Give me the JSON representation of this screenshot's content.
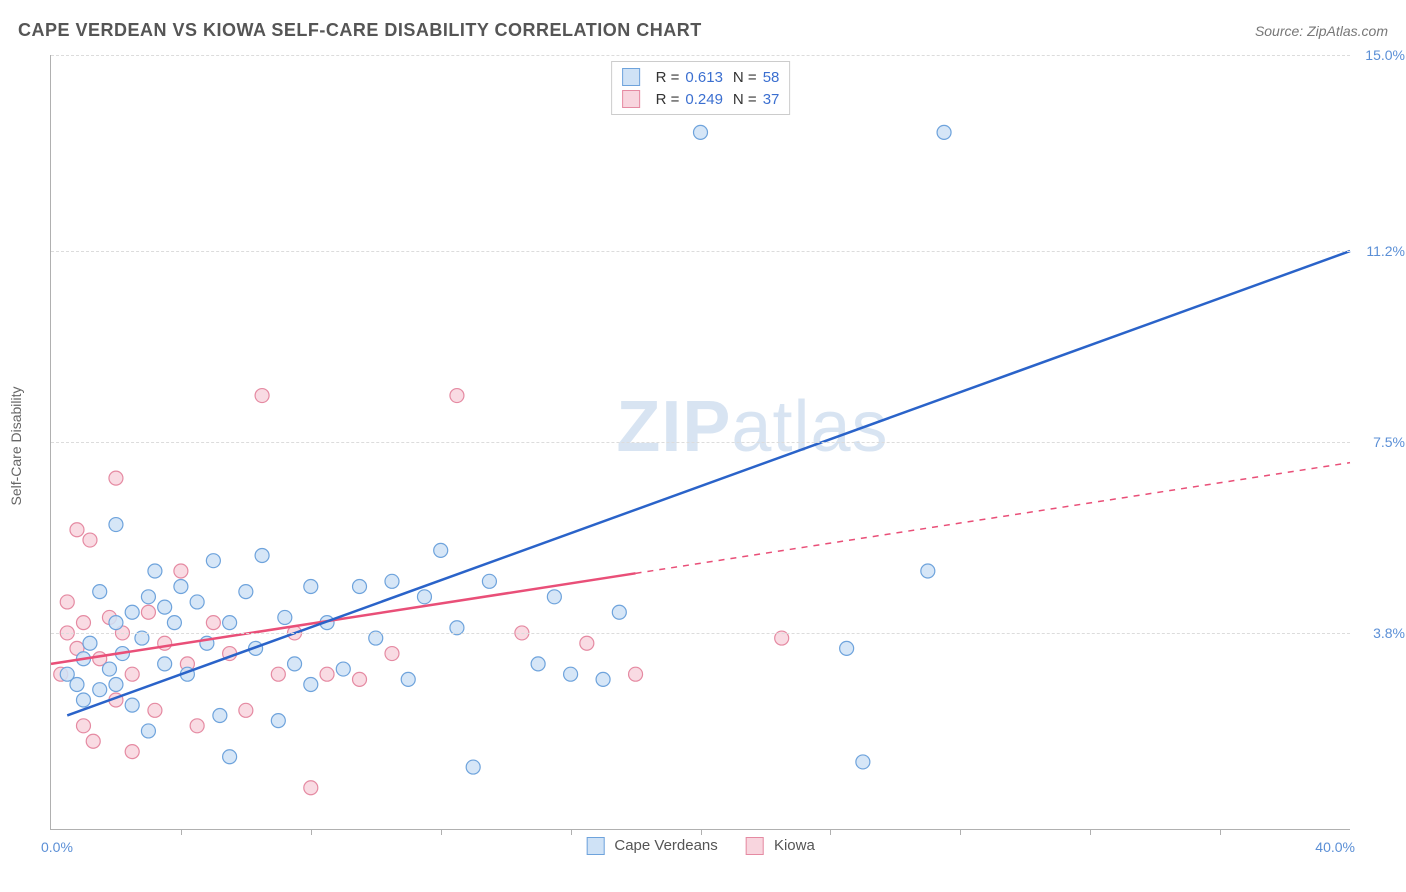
{
  "title": "CAPE VERDEAN VS KIOWA SELF-CARE DISABILITY CORRELATION CHART",
  "source": "Source: ZipAtlas.com",
  "y_axis_title": "Self-Care Disability",
  "watermark_a": "ZIP",
  "watermark_b": "atlas",
  "xlim": [
    0,
    40
  ],
  "ylim": [
    0,
    15
  ],
  "x_origin_label": "0.0%",
  "x_max_label": "40.0%",
  "x_ticks_at": [
    4,
    8,
    12,
    16,
    20,
    24,
    28,
    32,
    36
  ],
  "y_grid": [
    {
      "value": 3.8,
      "label": "3.8%"
    },
    {
      "value": 7.5,
      "label": "7.5%"
    },
    {
      "value": 11.2,
      "label": "11.2%"
    },
    {
      "value": 15.0,
      "label": "15.0%"
    }
  ],
  "series": {
    "cape_verdeans": {
      "label": "Cape Verdeans",
      "point_fill": "#cfe2f6",
      "point_stroke": "#6ea3dc",
      "line_color": "#2a63c9",
      "R_label": "R  =",
      "R_value": "0.613",
      "N_label": "N  =",
      "N_value": "58",
      "trend_line": {
        "x1": 0.5,
        "y1": 2.2,
        "x2": 40,
        "y2": 11.2,
        "dash_from_x": null
      },
      "points": [
        [
          0.5,
          3.0
        ],
        [
          0.8,
          2.8
        ],
        [
          1.0,
          3.3
        ],
        [
          1.0,
          2.5
        ],
        [
          1.2,
          3.6
        ],
        [
          1.5,
          2.7
        ],
        [
          1.5,
          4.6
        ],
        [
          1.8,
          3.1
        ],
        [
          2.0,
          2.8
        ],
        [
          2.0,
          4.0
        ],
        [
          2.0,
          5.9
        ],
        [
          2.2,
          3.4
        ],
        [
          2.5,
          4.2
        ],
        [
          2.5,
          2.4
        ],
        [
          2.8,
          3.7
        ],
        [
          3.0,
          4.5
        ],
        [
          3.0,
          1.9
        ],
        [
          3.2,
          5.0
        ],
        [
          3.5,
          3.2
        ],
        [
          3.5,
          4.3
        ],
        [
          3.8,
          4.0
        ],
        [
          4.0,
          4.7
        ],
        [
          4.2,
          3.0
        ],
        [
          4.5,
          4.4
        ],
        [
          4.8,
          3.6
        ],
        [
          5.0,
          5.2
        ],
        [
          5.2,
          2.2
        ],
        [
          5.5,
          4.0
        ],
        [
          5.5,
          1.4
        ],
        [
          6.0,
          4.6
        ],
        [
          6.3,
          3.5
        ],
        [
          6.5,
          5.3
        ],
        [
          7.0,
          2.1
        ],
        [
          7.2,
          4.1
        ],
        [
          7.5,
          3.2
        ],
        [
          8.0,
          4.7
        ],
        [
          8.0,
          2.8
        ],
        [
          8.5,
          4.0
        ],
        [
          9.0,
          3.1
        ],
        [
          9.5,
          4.7
        ],
        [
          10.0,
          3.7
        ],
        [
          10.5,
          4.8
        ],
        [
          11.0,
          2.9
        ],
        [
          11.5,
          4.5
        ],
        [
          12.0,
          5.4
        ],
        [
          12.5,
          3.9
        ],
        [
          13.0,
          1.2
        ],
        [
          13.5,
          4.8
        ],
        [
          15.0,
          3.2
        ],
        [
          15.5,
          4.5
        ],
        [
          16.0,
          3.0
        ],
        [
          17.0,
          2.9
        ],
        [
          17.5,
          4.2
        ],
        [
          20.0,
          13.5
        ],
        [
          24.5,
          3.5
        ],
        [
          25.0,
          1.3
        ],
        [
          27.5,
          13.5
        ],
        [
          27.0,
          5.0
        ]
      ]
    },
    "kiowa": {
      "label": "Kiowa",
      "point_fill": "#f8d5de",
      "point_stroke": "#e58aa2",
      "line_color": "#e94f78",
      "R_label": "R  =",
      "R_value": "0.249",
      "N_label": "N  =",
      "N_value": "37",
      "trend_line": {
        "x1": 0,
        "y1": 3.2,
        "x2": 40,
        "y2": 7.1,
        "dash_from_x": 18
      },
      "points": [
        [
          0.3,
          3.0
        ],
        [
          0.5,
          3.8
        ],
        [
          0.5,
          4.4
        ],
        [
          0.8,
          3.5
        ],
        [
          0.8,
          5.8
        ],
        [
          1.0,
          2.0
        ],
        [
          1.0,
          4.0
        ],
        [
          1.2,
          5.6
        ],
        [
          1.3,
          1.7
        ],
        [
          1.5,
          3.3
        ],
        [
          1.8,
          4.1
        ],
        [
          2.0,
          6.8
        ],
        [
          2.0,
          2.5
        ],
        [
          2.2,
          3.8
        ],
        [
          2.5,
          3.0
        ],
        [
          2.5,
          1.5
        ],
        [
          3.0,
          4.2
        ],
        [
          3.2,
          2.3
        ],
        [
          3.5,
          3.6
        ],
        [
          4.0,
          5.0
        ],
        [
          4.2,
          3.2
        ],
        [
          4.5,
          2.0
        ],
        [
          5.0,
          4.0
        ],
        [
          5.5,
          3.4
        ],
        [
          6.0,
          2.3
        ],
        [
          6.5,
          8.4
        ],
        [
          7.0,
          3.0
        ],
        [
          7.5,
          3.8
        ],
        [
          8.0,
          0.8
        ],
        [
          8.5,
          3.0
        ],
        [
          9.5,
          2.9
        ],
        [
          10.5,
          3.4
        ],
        [
          12.5,
          8.4
        ],
        [
          14.5,
          3.8
        ],
        [
          16.5,
          3.6
        ],
        [
          18.0,
          3.0
        ],
        [
          22.5,
          3.7
        ]
      ]
    }
  },
  "colors": {
    "grid": "#dcdcdc",
    "axis": "#b0b0b0",
    "tick_label": "#5b8fd6",
    "title_text": "#555555"
  },
  "marker_radius": 7
}
